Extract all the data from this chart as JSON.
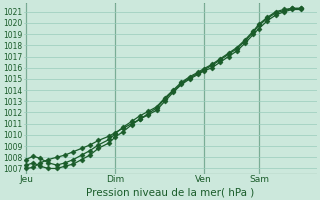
{
  "xlabel": "Pression niveau de la mer( hPa )",
  "background_color": "#cce8dc",
  "plot_bg_color": "#cce8dc",
  "grid_color": "#99ccbb",
  "line_color": "#1a5c2a",
  "ylim_min": 1006.5,
  "ylim_max": 1021.8,
  "yticks": [
    1007,
    1008,
    1009,
    1010,
    1011,
    1012,
    1013,
    1014,
    1015,
    1016,
    1017,
    1018,
    1019,
    1020,
    1021
  ],
  "xtick_labels": [
    "Jeu",
    "Dim",
    "Ven",
    "Sam"
  ],
  "xtick_pos": [
    0.0,
    0.32,
    0.64,
    0.84
  ],
  "vline_color": "#336644",
  "series1_x": [
    0.0,
    0.025,
    0.05,
    0.08,
    0.11,
    0.14,
    0.17,
    0.2,
    0.23,
    0.26,
    0.3,
    0.32,
    0.35,
    0.38,
    0.41,
    0.44,
    0.47,
    0.5,
    0.53,
    0.56,
    0.59,
    0.62,
    0.64,
    0.67,
    0.7,
    0.73,
    0.76,
    0.79,
    0.82,
    0.84,
    0.87,
    0.9,
    0.93,
    0.96,
    0.99
  ],
  "series1_y": [
    1007.0,
    1007.1,
    1007.5,
    1007.8,
    1008.0,
    1008.2,
    1008.5,
    1008.8,
    1009.1,
    1009.5,
    1009.9,
    1010.2,
    1010.6,
    1011.0,
    1011.4,
    1011.8,
    1012.2,
    1013.0,
    1013.8,
    1014.5,
    1015.0,
    1015.4,
    1015.7,
    1016.0,
    1016.5,
    1017.0,
    1017.5,
    1018.2,
    1019.0,
    1019.5,
    1020.2,
    1020.7,
    1021.0,
    1021.2,
    1021.2
  ],
  "series2_x": [
    0.0,
    0.025,
    0.05,
    0.08,
    0.11,
    0.14,
    0.17,
    0.2,
    0.23,
    0.26,
    0.3,
    0.32,
    0.35,
    0.38,
    0.41,
    0.44,
    0.47,
    0.5,
    0.53,
    0.56,
    0.59,
    0.62,
    0.64,
    0.67,
    0.7,
    0.73,
    0.76,
    0.79,
    0.82,
    0.84,
    0.87,
    0.9,
    0.93,
    0.96,
    0.99
  ],
  "series2_y": [
    1007.3,
    1007.5,
    1007.2,
    1007.0,
    1007.0,
    1007.2,
    1007.4,
    1007.8,
    1008.2,
    1008.8,
    1009.3,
    1009.8,
    1010.3,
    1010.9,
    1011.4,
    1011.9,
    1012.4,
    1013.2,
    1013.9,
    1014.6,
    1015.1,
    1015.5,
    1015.8,
    1016.2,
    1016.7,
    1017.2,
    1017.7,
    1018.4,
    1019.2,
    1019.8,
    1020.4,
    1020.9,
    1021.1,
    1021.3,
    1021.3
  ],
  "series3_x": [
    0.0,
    0.025,
    0.05,
    0.08,
    0.11,
    0.14,
    0.17,
    0.2,
    0.23,
    0.26,
    0.3,
    0.32,
    0.35,
    0.38,
    0.41,
    0.44,
    0.47,
    0.5,
    0.53,
    0.56,
    0.59,
    0.62,
    0.64,
    0.67,
    0.7,
    0.73,
    0.76,
    0.79,
    0.82,
    0.84,
    0.87,
    0.9,
    0.93,
    0.96,
    0.99
  ],
  "series3_y": [
    1007.8,
    1008.1,
    1007.9,
    1007.5,
    1007.3,
    1007.5,
    1007.8,
    1008.2,
    1008.6,
    1009.1,
    1009.6,
    1010.1,
    1010.7,
    1011.2,
    1011.7,
    1012.1,
    1012.5,
    1013.3,
    1014.0,
    1014.7,
    1015.2,
    1015.6,
    1015.9,
    1016.3,
    1016.8,
    1017.3,
    1017.8,
    1018.5,
    1019.3,
    1019.9,
    1020.5,
    1021.0,
    1021.2,
    1021.3,
    1021.3
  ]
}
